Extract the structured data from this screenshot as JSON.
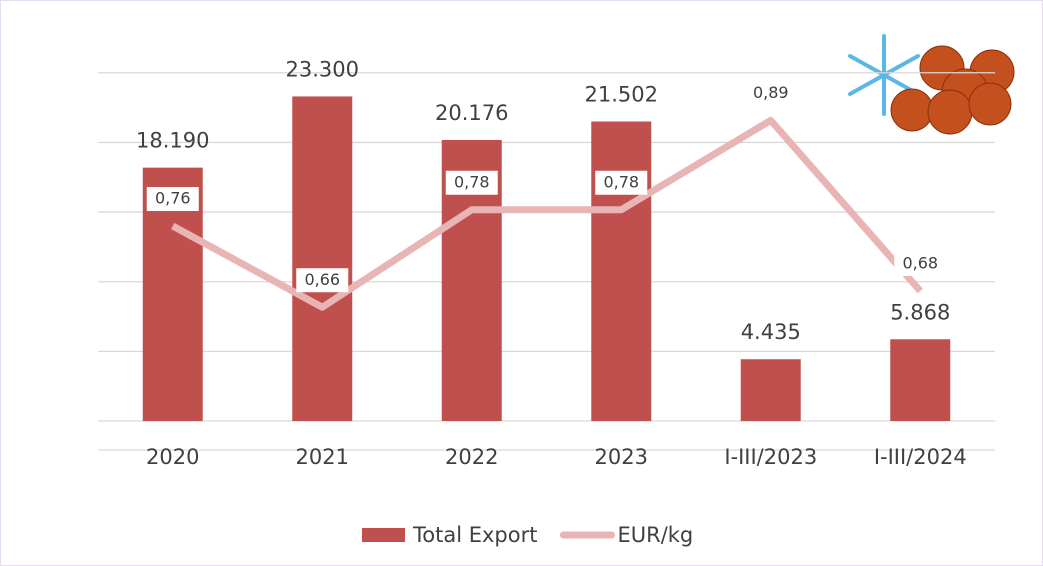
{
  "chart_data": {
    "type": "bar",
    "categories": [
      "2020",
      "2021",
      "2022",
      "2023",
      "I-III/2023",
      "I-III/2024"
    ],
    "series": [
      {
        "name": "Total Export",
        "type": "bar",
        "color": "#c0504d",
        "values": [
          18190,
          23300,
          20176,
          21502,
          4435,
          5868
        ],
        "value_labels": [
          "18.190",
          "23.300",
          "20.176",
          "21.502",
          "4.435",
          "5.868"
        ]
      },
      {
        "name": "EUR/kg",
        "type": "line",
        "axis": "y2",
        "color": "#e8b4b4",
        "values": [
          0.76,
          0.66,
          0.78,
          0.78,
          0.89,
          0.68
        ],
        "value_labels": [
          "0,76",
          "0,66",
          "0,78",
          "0,78",
          "0,89",
          "0,68"
        ]
      }
    ],
    "ylim": [
      0,
      28000
    ],
    "yticks": [
      0,
      5000,
      10000,
      15000,
      20000,
      25000
    ],
    "y2lim": [
      0.52,
      1.0
    ],
    "grid": true,
    "legend": "bottom"
  }
}
